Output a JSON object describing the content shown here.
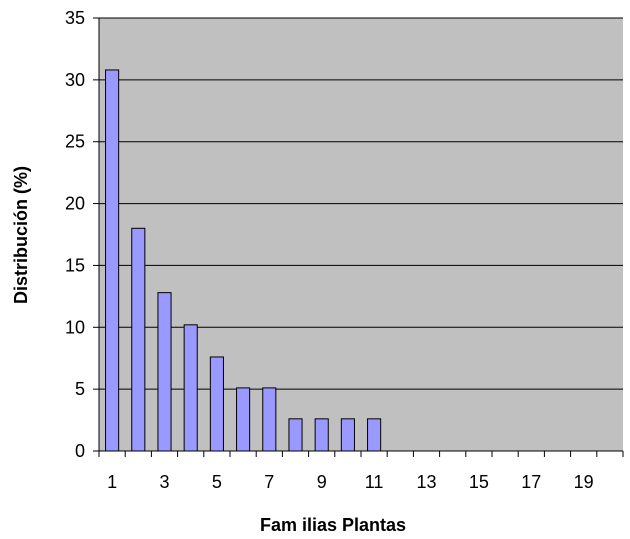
{
  "chart_data": {
    "type": "bar",
    "title": "",
    "xlabel": "Fam ilias  Plantas",
    "ylabel": "Distribución (%)",
    "x": [
      1,
      2,
      3,
      4,
      5,
      6,
      7,
      8,
      9,
      10,
      11,
      12,
      13,
      14,
      15,
      16,
      17,
      18,
      19,
      20
    ],
    "values": [
      30.8,
      18.0,
      12.8,
      10.2,
      7.6,
      5.1,
      5.1,
      2.6,
      2.6,
      2.6,
      2.6,
      0,
      0,
      0,
      0,
      0,
      0,
      0,
      0,
      0
    ],
    "xtick_labels": [
      "1",
      "3",
      "5",
      "7",
      "9",
      "11",
      "13",
      "15",
      "17",
      "19"
    ],
    "ytick_labels": [
      "0",
      "5",
      "10",
      "15",
      "20",
      "25",
      "30",
      "35"
    ],
    "ylim": [
      0,
      35
    ],
    "grid": true,
    "legend": "none",
    "colors": {
      "plot_background": "#c0c0c0",
      "bar_fill": "#9999ff",
      "bar_stroke": "#000000",
      "gridline": "#000000"
    }
  }
}
